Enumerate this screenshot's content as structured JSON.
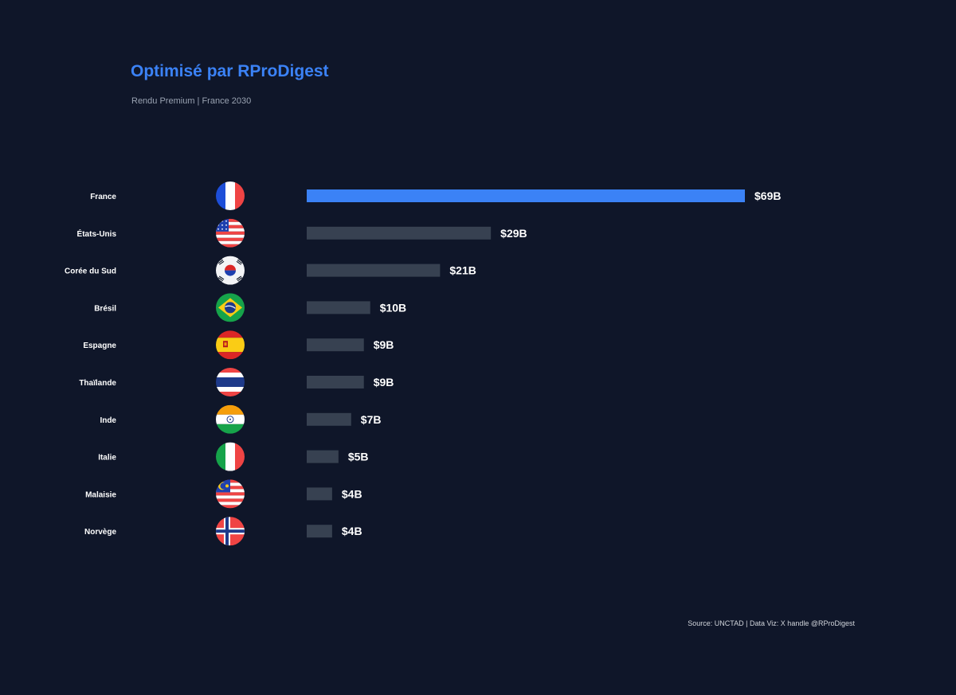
{
  "title": "Optimisé par RProDigest",
  "subtitle": "Rendu Premium | France 2030",
  "source": "Source: UNCTAD | Data Viz: X handle @RProDigest",
  "colors": {
    "background": "#0f1629",
    "highlight_bar": "#3b82f6",
    "bar": "#374151",
    "label": "#ffffff",
    "title": "#3b82f6"
  },
  "chart_data": {
    "type": "bar",
    "orientation": "horizontal",
    "categories": [
      "France",
      "États-Unis",
      "Corée du Sud",
      "Brésil",
      "Espagne",
      "Thaïlande",
      "Inde",
      "Italie",
      "Malaisie",
      "Norvège"
    ],
    "values": [
      69,
      29,
      21,
      10,
      9,
      9,
      7,
      5,
      4,
      4
    ],
    "value_labels": [
      "$69B",
      "$29B",
      "$21B",
      "$10B",
      "$9B",
      "$9B",
      "$7B",
      "$5B",
      "$4B",
      "$4B"
    ],
    "flags": [
      "flag-france-icon",
      "flag-usa-icon",
      "flag-south-korea-icon",
      "flag-brazil-icon",
      "flag-spain-icon",
      "flag-thailand-icon",
      "flag-india-icon",
      "flag-italy-icon",
      "flag-malaysia-icon",
      "flag-norway-icon"
    ],
    "highlight": "France",
    "xlim": [
      0,
      69
    ],
    "grid": false,
    "xlabel": "",
    "ylabel": ""
  }
}
